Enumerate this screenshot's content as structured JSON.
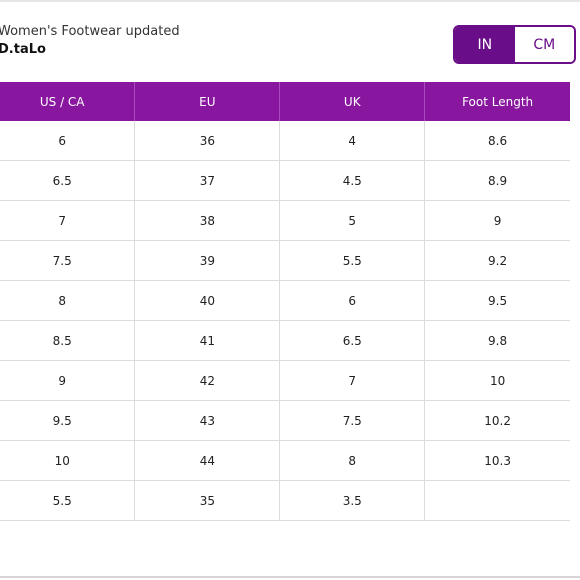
{
  "header": {
    "subtitle": "Women's Footwear updated",
    "brand": "D.taLo"
  },
  "unit_toggle": {
    "options": [
      "IN",
      "CM"
    ],
    "selected": "IN"
  },
  "table": {
    "columns": [
      "US / CA",
      "EU",
      "UK",
      "Foot Length"
    ],
    "rows": [
      [
        "6",
        "36",
        "4",
        "8.6"
      ],
      [
        "6.5",
        "37",
        "4.5",
        "8.9"
      ],
      [
        "7",
        "38",
        "5",
        "9"
      ],
      [
        "7.5",
        "39",
        "5.5",
        "9.2"
      ],
      [
        "8",
        "40",
        "6",
        "9.5"
      ],
      [
        "8.5",
        "41",
        "6.5",
        "9.8"
      ],
      [
        "9",
        "42",
        "7",
        "10"
      ],
      [
        "9.5",
        "43",
        "7.5",
        "10.2"
      ],
      [
        "10",
        "44",
        "8",
        "10.3"
      ],
      [
        "5.5",
        "35",
        "3.5",
        ""
      ]
    ]
  },
  "colors": {
    "header_bg": "#88169f",
    "accent": "#6a0d88"
  }
}
